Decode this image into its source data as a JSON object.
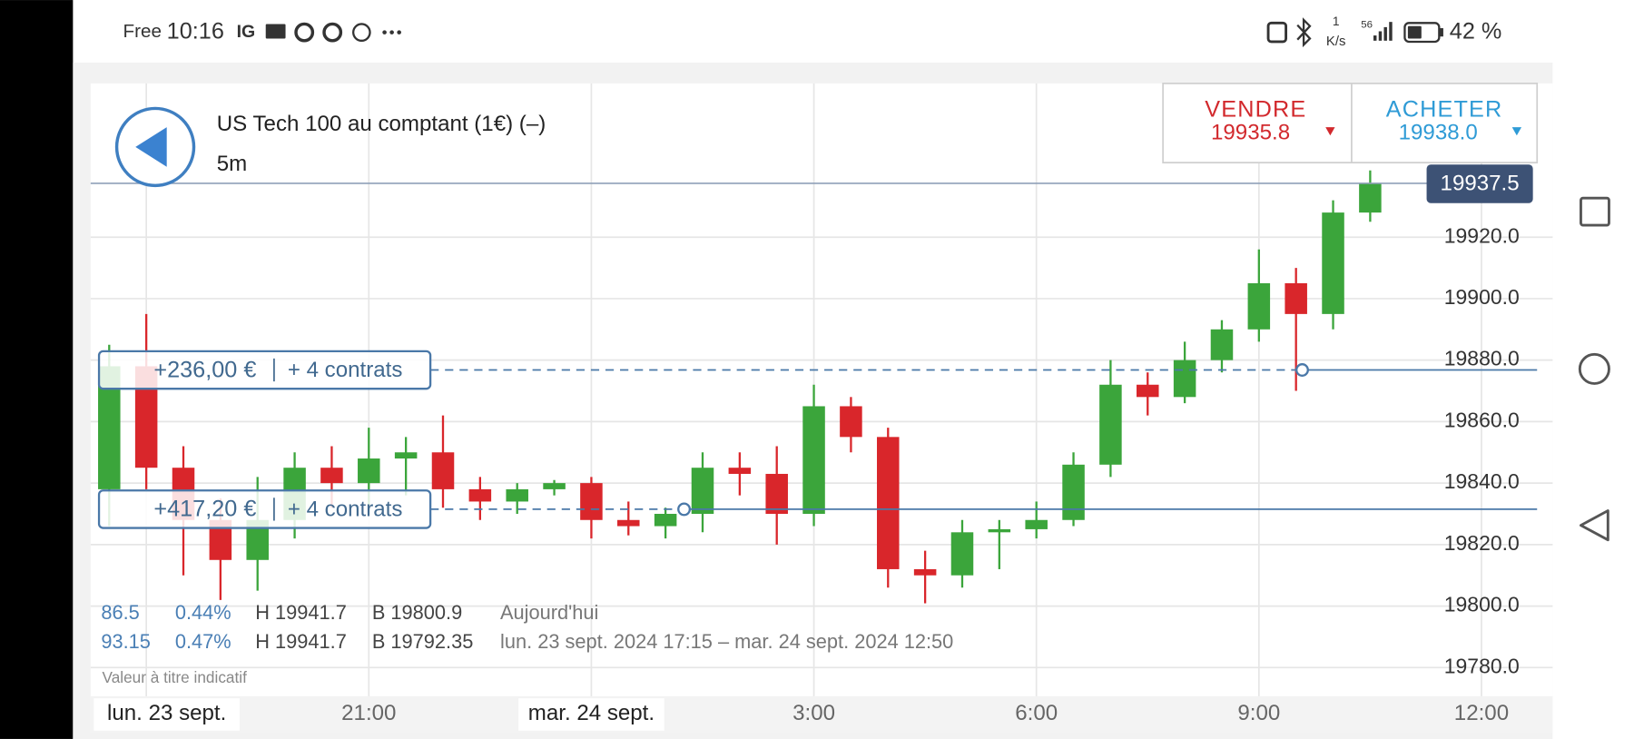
{
  "status_bar": {
    "carrier": "Free",
    "time": "10:16",
    "app": "IG",
    "speed_value": "1",
    "speed_unit": "K/s",
    "network": "56",
    "battery": "42 %"
  },
  "header": {
    "instrument": "US Tech 100 au comptant (1€) (–)",
    "interval": "5m"
  },
  "trade": {
    "sell_label": "VENDRE",
    "sell_price": "19935.8",
    "buy_label": "ACHETER",
    "buy_price": "19938.0"
  },
  "stats": {
    "rows": [
      [
        "86.5",
        "0.44%",
        "H 19941.7",
        "B 19800.9",
        "Aujourd'hui"
      ],
      [
        "93.15",
        "0.47%",
        "H 19941.7",
        "B 19792.35",
        "lun. 23 sept. 2024 17:15 – mar. 24 sept. 2024 12:50"
      ]
    ]
  },
  "disclaimer": "Valeur à titre indicatif",
  "chart_data": {
    "type": "candlestick",
    "x": [
      "2024-09-23T17:15",
      "2024-09-23T17:45",
      "2024-09-23T18:15",
      "2024-09-23T18:45",
      "2024-09-23T19:15",
      "2024-09-23T19:45",
      "2024-09-23T20:15",
      "2024-09-23T20:45",
      "2024-09-23T21:15",
      "2024-09-23T21:45",
      "2024-09-23T22:15",
      "2024-09-23T22:45",
      "2024-09-23T23:15",
      "2024-09-23T23:45",
      "2024-09-24T00:15",
      "2024-09-24T00:45",
      "2024-09-24T01:15",
      "2024-09-24T01:45",
      "2024-09-24T02:15",
      "2024-09-24T02:45",
      "2024-09-24T03:15",
      "2024-09-24T03:45",
      "2024-09-24T04:15",
      "2024-09-24T04:45",
      "2024-09-24T05:15",
      "2024-09-24T05:45",
      "2024-09-24T06:15",
      "2024-09-24T06:45",
      "2024-09-24T07:15",
      "2024-09-24T07:45",
      "2024-09-24T08:15",
      "2024-09-24T08:45",
      "2024-09-24T09:15",
      "2024-09-24T09:45",
      "2024-09-24T10:15"
    ],
    "open": [
      19838,
      19878,
      19845,
      19828,
      19815,
      19828,
      19845,
      19840,
      19848,
      19850,
      19838,
      19834,
      19838,
      19840,
      19828,
      19826,
      19830,
      19845,
      19843,
      19830,
      19865,
      19855,
      19812,
      19810,
      19824,
      19825,
      19828,
      19846,
      19872,
      19868,
      19880,
      19890,
      19905,
      19895,
      19928
    ],
    "high": [
      19885,
      19895,
      19852,
      19835,
      19842,
      19850,
      19852,
      19858,
      19855,
      19862,
      19842,
      19840,
      19841,
      19842,
      19834,
      19832,
      19850,
      19850,
      19852,
      19872,
      19868,
      19858,
      19818,
      19828,
      19828,
      19834,
      19850,
      19880,
      19876,
      19886,
      19893,
      19916,
      19910,
      19932,
      19941.7
    ],
    "low": [
      19826,
      19838,
      19810,
      19802,
      19805,
      19822,
      19832,
      19830,
      19836,
      19832,
      19828,
      19830,
      19836,
      19822,
      19823,
      19822,
      19824,
      19836,
      19820,
      19826,
      19850,
      19806,
      19800.9,
      19806,
      19812,
      19822,
      19826,
      19842,
      19862,
      19866,
      19876,
      19886,
      19870,
      19890,
      19925
    ],
    "close": [
      19878,
      19845,
      19828,
      19815,
      19828,
      19845,
      19840,
      19848,
      19850,
      19838,
      19834,
      19838,
      19840,
      19828,
      19826,
      19830,
      19845,
      19843,
      19830,
      19865,
      19855,
      19812,
      19810,
      19824,
      19825,
      19828,
      19846,
      19872,
      19868,
      19880,
      19890,
      19905,
      19895,
      19928,
      19937.5
    ],
    "up_color": "#3ba53b",
    "down_color": "#d9262b",
    "xlim": [
      "2024-09-23T17:15",
      "2024-09-24T12:45"
    ],
    "xticks": [
      {
        "value": "2024-09-23T18:00",
        "label": "lun. 23 sept."
      },
      {
        "value": "2024-09-23T21:00",
        "label": "21:00"
      },
      {
        "value": "2024-09-24T00:00",
        "label": "mar. 24 sept."
      },
      {
        "value": "2024-09-24T03:00",
        "label": "3:00"
      },
      {
        "value": "2024-09-24T06:00",
        "label": "6:00"
      },
      {
        "value": "2024-09-24T09:00",
        "label": "9:00"
      },
      {
        "value": "2024-09-24T12:00",
        "label": "12:00"
      }
    ],
    "ylim": [
      19770,
      19970
    ],
    "yticks": [
      {
        "value": 19780,
        "label": "19780.0"
      },
      {
        "value": 19800,
        "label": "19800.0"
      },
      {
        "value": 19820,
        "label": "19820.0"
      },
      {
        "value": 19840,
        "label": "19840.0"
      },
      {
        "value": 19860,
        "label": "19860.0"
      },
      {
        "value": 19880,
        "label": "19880.0"
      },
      {
        "value": 19900,
        "label": "19900.0"
      },
      {
        "value": 19920,
        "label": "19920.0"
      }
    ],
    "grid": true,
    "last_price": 19937.5,
    "positions": [
      {
        "pnl": "+236,00 €",
        "contracts": "+ 4 contrats",
        "level": 19876.8,
        "entry": "2024-09-24T09:35"
      },
      {
        "pnl": "+417,20 €",
        "contracts": "+ 4 contrats",
        "level": 19831.5,
        "entry": "2024-09-24T01:15"
      }
    ]
  }
}
